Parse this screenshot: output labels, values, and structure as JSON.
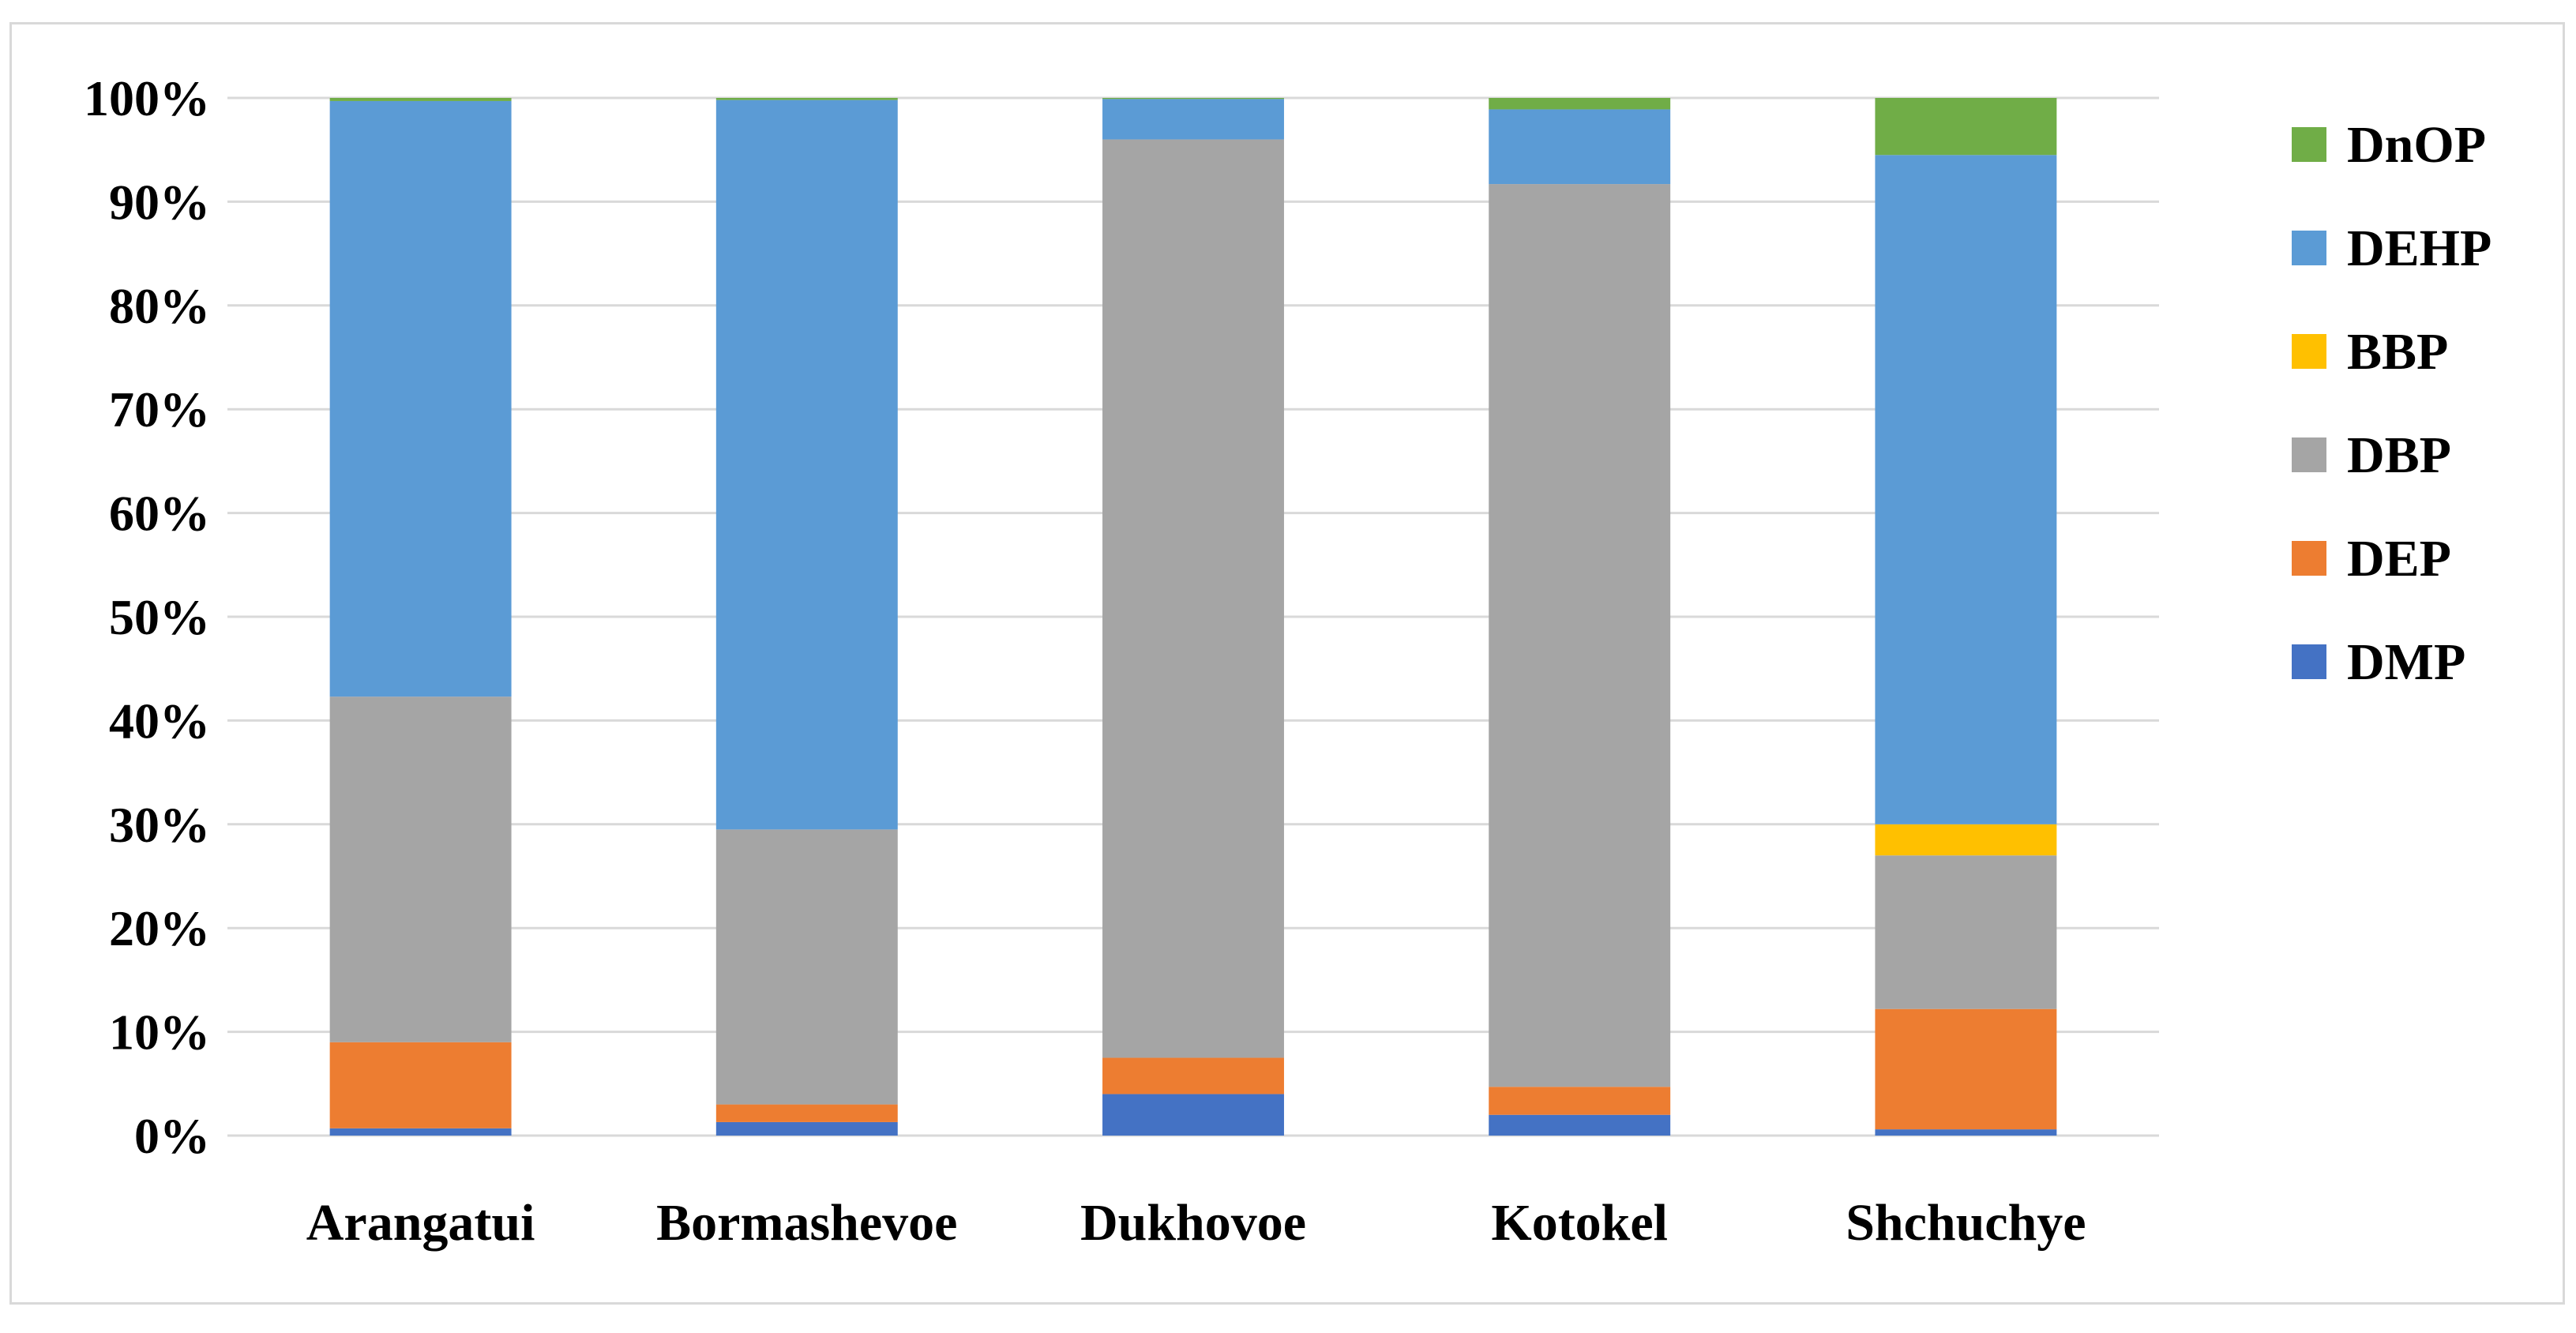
{
  "chart_data": {
    "type": "bar",
    "stacked": true,
    "percent_stacked": true,
    "categories": [
      "Arangatui",
      "Bormashevoe",
      "Dukhovoe",
      "Kotokel",
      "Shchuchye"
    ],
    "yticks": [
      "0%",
      "10%",
      "20%",
      "30%",
      "40%",
      "50%",
      "60%",
      "70%",
      "80%",
      "90%",
      "100%"
    ],
    "ylim": [
      0,
      100
    ],
    "grid": true,
    "legend_position": "right",
    "series": [
      {
        "name": "DMP",
        "color": "#4472C4",
        "values": [
          0.7,
          1.3,
          4.0,
          2.0,
          0.6
        ]
      },
      {
        "name": "DEP",
        "color": "#ED7D31",
        "values": [
          8.3,
          1.7,
          3.5,
          2.7,
          11.6
        ]
      },
      {
        "name": "DBP",
        "color": "#A5A5A5",
        "values": [
          33.3,
          26.5,
          88.5,
          87.0,
          14.8
        ]
      },
      {
        "name": "BBP",
        "color": "#FFC000",
        "values": [
          0.0,
          0.0,
          0.0,
          0.0,
          3.0
        ]
      },
      {
        "name": "DEHP",
        "color": "#5B9BD5",
        "values": [
          57.4,
          70.3,
          3.9,
          7.2,
          64.5
        ]
      },
      {
        "name": "DnOP",
        "color": "#70AD47",
        "values": [
          0.3,
          0.2,
          0.1,
          1.1,
          5.5
        ]
      }
    ]
  }
}
